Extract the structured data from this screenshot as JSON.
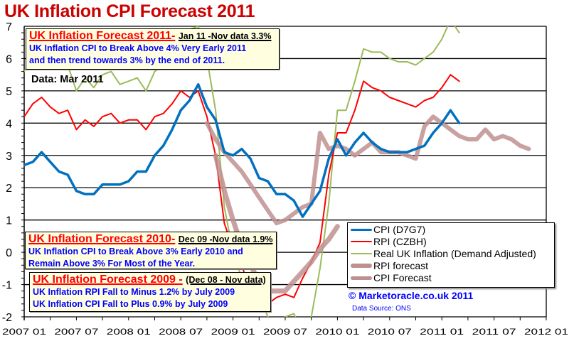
{
  "chart_data": {
    "type": "line",
    "title": "UK Inflation CPI Forecast 2011",
    "xlabel": "",
    "ylabel": "",
    "ylim": [
      -2,
      7
    ],
    "yticks": [
      -2,
      -1,
      0,
      1,
      2,
      3,
      4,
      5,
      6,
      7
    ],
    "xlim": [
      "2007-01",
      "2012-01"
    ],
    "xtick_labels": [
      "2007 01",
      "2007 07",
      "2008 01",
      "2008 07",
      "2009 01",
      "2009 07",
      "2010 01",
      "2010 07",
      "2011 01",
      "2011 07",
      "2012 01"
    ],
    "grid": "horizontal",
    "legend_position": "bottom-right",
    "series": [
      {
        "name": "CPI (D7G7)",
        "color": "#0070c0",
        "start": "2007-01",
        "values": [
          2.7,
          2.8,
          3.1,
          2.8,
          2.5,
          2.4,
          1.9,
          1.8,
          1.8,
          2.1,
          2.1,
          2.1,
          2.2,
          2.5,
          2.5,
          3.0,
          3.3,
          3.8,
          4.4,
          4.7,
          5.2,
          4.5,
          4.1,
          3.1,
          3.0,
          3.2,
          2.9,
          2.3,
          2.2,
          1.8,
          1.8,
          1.6,
          1.1,
          1.5,
          1.9,
          2.9,
          3.5,
          3.0,
          3.4,
          3.7,
          3.4,
          3.2,
          3.1,
          3.1,
          3.1,
          3.2,
          3.3,
          3.7,
          4.0,
          4.4,
          4.0
        ]
      },
      {
        "name": "RPI (CZBH)",
        "color": "#ff0000",
        "start": "2007-01",
        "values": [
          4.2,
          4.6,
          4.8,
          4.5,
          4.3,
          4.4,
          3.8,
          4.1,
          3.9,
          4.2,
          4.3,
          4.0,
          4.1,
          4.1,
          3.8,
          4.2,
          4.3,
          4.6,
          5.0,
          4.8,
          5.0,
          4.2,
          3.0,
          0.9,
          0.1,
          -0.4,
          -1.2,
          -1.1,
          -1.6,
          -1.4,
          -1.3,
          -1.4,
          -0.8,
          -0.3,
          0.3,
          2.4,
          3.7,
          3.7,
          4.4,
          5.3,
          5.1,
          5.0,
          4.8,
          4.7,
          4.6,
          4.5,
          4.7,
          4.8,
          5.1,
          5.5,
          5.3
        ]
      },
      {
        "name": "Real UK Inflation (Demand Adjusted)",
        "color": "#9bbb59",
        "start": "2007-01",
        "values": [
          5.6,
          6.0,
          6.2,
          5.9,
          5.7,
          5.8,
          5.0,
          5.4,
          5.1,
          5.5,
          5.6,
          5.2,
          5.3,
          5.4,
          5.0,
          5.6,
          5.8,
          6.3,
          6.8,
          6.9,
          7.0,
          6.0,
          4.4,
          1.4,
          0.0,
          -0.8,
          -1.3,
          -1.3,
          -2.0,
          -2.5,
          -2.0,
          -1.9,
          -2.5,
          -2.0,
          -0.5,
          1.5,
          4.4,
          4.4,
          5.3,
          6.3,
          6.2,
          6.2,
          6.0,
          5.9,
          5.9,
          5.8,
          6.0,
          6.2,
          6.6,
          7.2,
          6.8
        ]
      },
      {
        "name": "RPI forecast",
        "color": "#c09090",
        "start": "2008-11",
        "values": [
          3.0,
          1.9,
          1.0,
          0.2,
          -0.4,
          -0.9,
          -1.2,
          -1.2,
          -1.2,
          -0.9,
          -0.6,
          -0.3,
          0.1,
          0.4,
          0.8
        ]
      },
      {
        "name": "CPI Forecast",
        "color": "#c09090",
        "start": "2008-10",
        "values": [
          4.0,
          3.5,
          3.1,
          2.8,
          2.5,
          2.1,
          1.7,
          1.3,
          0.9,
          1.0,
          1.2,
          1.4,
          1.5,
          3.7,
          3.2,
          3.3,
          3.2,
          3.0,
          3.2,
          3.4,
          3.1,
          3.1,
          3.1,
          3.0,
          2.9,
          3.9,
          4.2,
          4.0,
          3.8,
          3.6,
          3.5,
          3.5,
          3.8,
          3.5,
          3.6,
          3.5,
          3.3,
          3.2
        ]
      }
    ]
  },
  "title": "UK Inflation CPI Forecast 2011",
  "notes": {
    "forecast_2011": {
      "heading": "UK Inflation Forecast 2011-",
      "subheading": "Jan 11 -Nov data  3.3%",
      "lines": [
        "UK Inflation CPI to Break Above 4% Very Early 2011",
        "and then trend towards 3% by the end of 2011."
      ]
    },
    "forecast_2010": {
      "heading": "UK Inflation Forecast 2010-",
      "subheading": "Dec 09 -Nov data 1.9%",
      "lines": [
        "UK Inflation CPI to Break Above 3% Early 2010  and",
        "Remain Above 3% For Most of the Year."
      ]
    },
    "forecast_2009": {
      "heading": "UK Inflation Forecast 2009 -",
      "subheading": "(Dec 08 - Nov data)",
      "lines": [
        "UK Inflation RPI Fall to  Minus 1.2% by July 2009",
        "UK Inflation CPI Fall to Plus 0.9% by July 2009"
      ]
    }
  },
  "data_date": "Data:  Mar 2011",
  "copyright": "© Marketoracle.co.uk 2011",
  "source": "Data Source: ONS"
}
